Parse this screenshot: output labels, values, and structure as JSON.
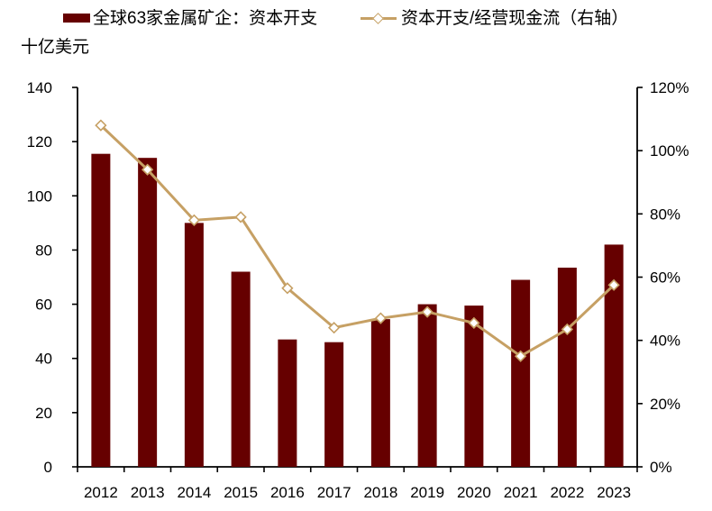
{
  "legend": [
    {
      "label": "全球63家金属矿企：资本开支",
      "type": "bar",
      "color": "#660000"
    },
    {
      "label": "资本开支/经营现金流（右轴）",
      "type": "line",
      "color": "#C6A064",
      "marker": "diamond"
    }
  ],
  "chart_data": {
    "type": "bar+line",
    "categories": [
      "2012",
      "2013",
      "2014",
      "2015",
      "2016",
      "2017",
      "2018",
      "2019",
      "2020",
      "2021",
      "2022",
      "2023"
    ],
    "series": [
      {
        "name": "全球63家金属矿企：资本开支",
        "type": "bar",
        "axis": "left",
        "color": "#660000",
        "values": [
          115.5,
          114,
          90,
          72,
          47,
          46,
          54.5,
          60,
          59.5,
          69,
          73.5,
          82
        ]
      },
      {
        "name": "资本开支/经营现金流（右轴）",
        "type": "line",
        "axis": "right",
        "color": "#C6A064",
        "marker": "diamond",
        "values": [
          108,
          94,
          78,
          79,
          56.5,
          44,
          47,
          49,
          45.5,
          35,
          43.5,
          57.5
        ]
      }
    ],
    "left_axis": {
      "title": "十亿美元",
      "min": 0,
      "max": 140,
      "step": 20,
      "tick_labels": [
        "0",
        "20",
        "40",
        "60",
        "80",
        "100",
        "120",
        "140"
      ]
    },
    "right_axis": {
      "min": 0,
      "max": 120,
      "step": 20,
      "suffix": "%",
      "tick_labels": [
        "0%",
        "20%",
        "40%",
        "60%",
        "80%",
        "100%",
        "120%"
      ]
    },
    "legend_position": "top",
    "grid": false,
    "axis_color": "#000000",
    "background": "#FFFFFF"
  }
}
